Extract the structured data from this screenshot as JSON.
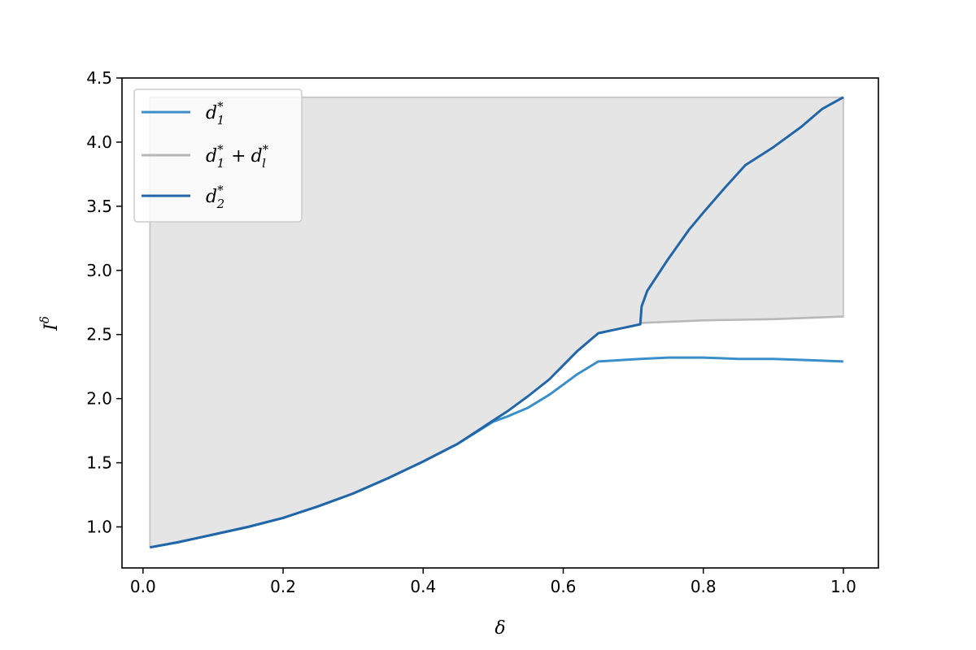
{
  "chart_data": {
    "type": "line",
    "xlabel": "δ",
    "ylabel": "I",
    "ylabel_sup": "δ",
    "xlim": [
      -0.03,
      1.05
    ],
    "ylim": [
      0.68,
      4.5
    ],
    "x_ticks": [
      0.0,
      0.2,
      0.4,
      0.6,
      0.8,
      1.0
    ],
    "x_tick_labels": [
      "0.0",
      "0.2",
      "0.4",
      "0.6",
      "0.8",
      "1.0"
    ],
    "y_ticks": [
      1.0,
      1.5,
      2.0,
      2.5,
      3.0,
      3.5,
      4.0,
      4.5
    ],
    "y_tick_labels": [
      "1.0",
      "1.5",
      "2.0",
      "2.5",
      "3.0",
      "3.5",
      "4.0",
      "4.5"
    ],
    "grid": false,
    "legend_position": "top-left",
    "shaded_region": {
      "color": "#e5e5e5",
      "edge_color": "#c8c8c8",
      "upper_value": 4.35,
      "x_start": 0.01,
      "x_end": 1.0
    },
    "series": [
      {
        "name": "d1*",
        "legend": {
          "base": "d",
          "sub": "1",
          "sup": "*"
        },
        "color": "#3a8fc9",
        "x": [
          0.01,
          0.05,
          0.1,
          0.15,
          0.2,
          0.25,
          0.3,
          0.35,
          0.4,
          0.45,
          0.5,
          0.52,
          0.55,
          0.58,
          0.6,
          0.62,
          0.65,
          0.71,
          0.75,
          0.8,
          0.85,
          0.9,
          0.95,
          1.0
        ],
        "values": [
          0.84,
          0.88,
          0.94,
          1.0,
          1.07,
          1.16,
          1.26,
          1.38,
          1.51,
          1.65,
          1.82,
          1.86,
          1.93,
          2.03,
          2.11,
          2.19,
          2.29,
          2.31,
          2.32,
          2.32,
          2.31,
          2.31,
          2.3,
          2.29
        ]
      },
      {
        "name": "d1* + dl*",
        "legend": {
          "base": "d",
          "sub": "1",
          "sup": "*",
          "plus": "+",
          "base2": "d",
          "sub2": "l",
          "sup2": "*"
        },
        "color": "#b8b8b8",
        "x": [
          0.71,
          0.8,
          0.9,
          1.0
        ],
        "values": [
          2.59,
          2.61,
          2.62,
          2.64
        ]
      },
      {
        "name": "d2*",
        "legend": {
          "base": "d",
          "sub": "2",
          "sup": "*"
        },
        "color": "#2266a8",
        "x": [
          0.01,
          0.05,
          0.1,
          0.15,
          0.2,
          0.25,
          0.3,
          0.35,
          0.4,
          0.45,
          0.5,
          0.52,
          0.55,
          0.58,
          0.6,
          0.62,
          0.65,
          0.71,
          0.712,
          0.72,
          0.75,
          0.78,
          0.8,
          0.83,
          0.86,
          0.9,
          0.94,
          0.97,
          1.0
        ],
        "values": [
          0.84,
          0.88,
          0.94,
          1.0,
          1.07,
          1.16,
          1.26,
          1.38,
          1.51,
          1.65,
          1.83,
          1.9,
          2.02,
          2.15,
          2.26,
          2.37,
          2.51,
          2.58,
          2.72,
          2.84,
          3.09,
          3.32,
          3.45,
          3.64,
          3.82,
          3.96,
          4.12,
          4.26,
          4.35
        ]
      }
    ]
  }
}
